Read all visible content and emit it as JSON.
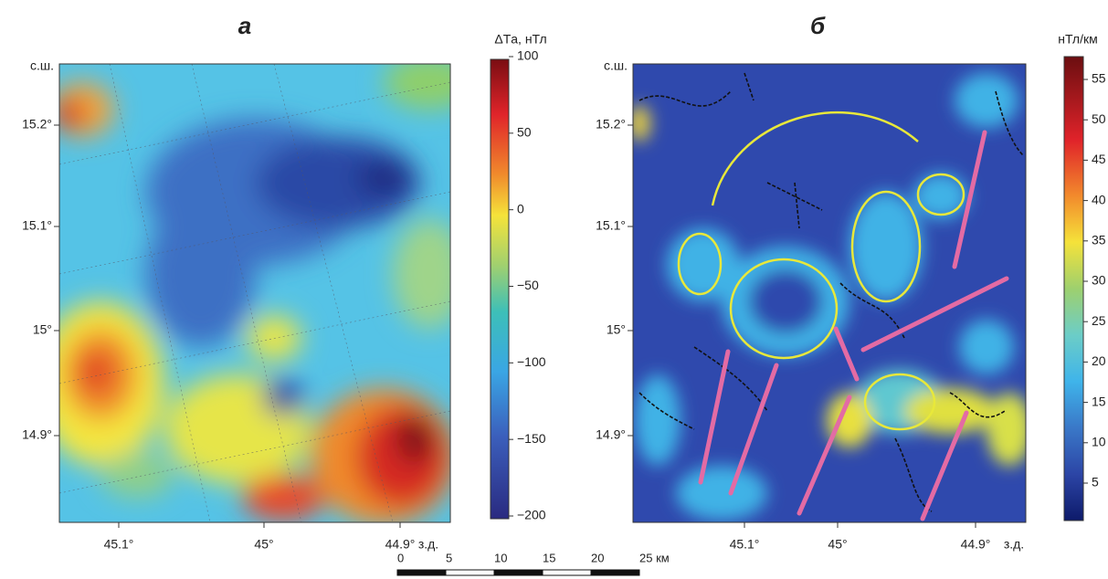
{
  "panels": [
    {
      "label": "а",
      "lat_unit": "с.ш.",
      "lat_ticks": [
        "15.2°",
        "15.1°",
        "15°",
        "14.9°"
      ],
      "lon_ticks": [
        "45.1°",
        "45°",
        "44.9°"
      ],
      "lon_unit": "з.д.",
      "colorbar": {
        "title": "ΔTа, нТл",
        "ticks": [
          "100",
          "50",
          "0",
          "−50",
          "−100",
          "−150",
          "−200"
        ]
      }
    },
    {
      "label": "б",
      "lat_unit": "с.ш.",
      "lat_ticks": [
        "15.2°",
        "15.1°",
        "15°",
        "14.9°"
      ],
      "lon_ticks": [
        "45.1°",
        "45°",
        "44.9°"
      ],
      "lon_unit": "з.д.",
      "colorbar": {
        "title": "нТл/км",
        "ticks": [
          "55",
          "50",
          "45",
          "40",
          "35",
          "30",
          "25",
          "20",
          "15",
          "10",
          "5"
        ]
      }
    }
  ],
  "scale_bar": {
    "ticks": [
      "0",
      "5",
      "10",
      "15",
      "20",
      "25 км"
    ]
  }
}
